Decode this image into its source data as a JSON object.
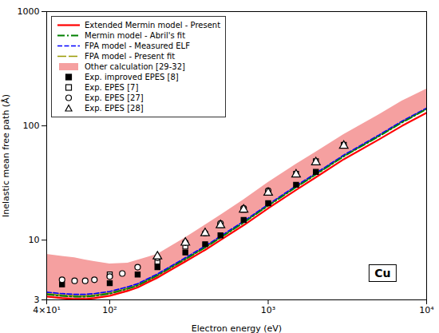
{
  "chart_data": {
    "type": "line",
    "xlabel": "Electron energy (eV)",
    "ylabel": "Inelastic mean free path (Å)",
    "log": true,
    "grid": false,
    "legend": "top-left",
    "xlim": [
      40,
      10000
    ],
    "ylim": [
      3,
      1000
    ],
    "xticks": [
      {
        "value": 40,
        "label": "4×10¹"
      },
      {
        "value": 100,
        "label": "10²"
      },
      {
        "value": 1000,
        "label": "10³"
      },
      {
        "value": 10000,
        "label": "10⁴"
      }
    ],
    "yticks": [
      3,
      10,
      100,
      1000
    ],
    "annotations": [
      "Cu"
    ],
    "series": [
      {
        "name": "Extended Mermin model - Present",
        "type": "line",
        "color": "#ff0000",
        "line_style": "solid",
        "x": [
          40,
          50,
          60,
          70,
          80,
          100,
          130,
          150,
          200,
          300,
          400,
          500,
          700,
          1000,
          1500,
          2000,
          3000,
          5000,
          7000,
          10000
        ],
        "values": [
          3.2,
          3.1,
          3.05,
          3.05,
          3.1,
          3.25,
          3.6,
          3.85,
          4.7,
          6.5,
          8.2,
          10.0,
          13.5,
          19.0,
          27.5,
          35.5,
          51.0,
          76.0,
          100.0,
          130.0
        ]
      },
      {
        "name": "Mermin model - Abril's fit",
        "type": "line",
        "color": "#008000",
        "line_style": "dashdot",
        "x": [
          40,
          50,
          60,
          70,
          80,
          100,
          130,
          150,
          200,
          300,
          400,
          500,
          700,
          1000,
          1500,
          2000,
          3000,
          5000,
          7000,
          10000
        ],
        "values": [
          3.35,
          3.25,
          3.2,
          3.2,
          3.25,
          3.4,
          3.75,
          4.0,
          4.9,
          6.8,
          8.6,
          10.5,
          14.2,
          20.0,
          29.0,
          37.5,
          54.0,
          81.0,
          107.0,
          140.0
        ]
      },
      {
        "name": "FPA model - Measured ELF",
        "type": "line",
        "color": "#0000ff",
        "line_style": "dashed",
        "x": [
          40,
          50,
          60,
          70,
          80,
          100,
          130,
          150,
          200,
          300,
          400,
          500,
          700,
          1000,
          1500,
          2000,
          3000,
          5000,
          7000,
          10000
        ],
        "values": [
          3.5,
          3.4,
          3.35,
          3.35,
          3.4,
          3.55,
          3.9,
          4.15,
          5.05,
          7.0,
          8.85,
          10.8,
          14.6,
          20.5,
          29.8,
          38.5,
          55.5,
          83.0,
          110.0,
          143.0
        ]
      },
      {
        "name": "FPA model - Present fit",
        "type": "line",
        "color": "#999900",
        "line_style": "longdashed",
        "x": [
          40,
          50,
          60,
          70,
          80,
          100,
          130,
          150,
          200,
          300,
          400,
          500,
          700,
          1000,
          1500,
          2000,
          3000,
          5000,
          7000,
          10000
        ],
        "values": [
          3.4,
          3.3,
          3.25,
          3.25,
          3.3,
          3.45,
          3.8,
          4.05,
          4.95,
          6.85,
          8.65,
          10.55,
          14.3,
          20.1,
          29.2,
          37.7,
          54.5,
          81.5,
          108.0,
          141.0
        ]
      },
      {
        "name": "Other calculation [29-32]",
        "type": "area",
        "color": "#f5a0a0",
        "x": [
          40,
          50,
          60,
          70,
          80,
          100,
          130,
          200,
          300,
          500,
          700,
          1000,
          1500,
          2000,
          3000,
          5000,
          7000,
          10000
        ],
        "lower": [
          3.2,
          3.1,
          3.05,
          3.05,
          3.1,
          3.2,
          3.5,
          4.5,
          6.5,
          10.5,
          14.2,
          20.0,
          29.0,
          37.5,
          54.0,
          81.0,
          107.0,
          140.0
        ],
        "upper": [
          7.5,
          7.2,
          7.0,
          6.7,
          6.5,
          6.2,
          6.3,
          7.5,
          10.5,
          16.5,
          22.5,
          32.0,
          46.0,
          59.0,
          84.0,
          125.0,
          165.0,
          210.0
        ]
      },
      {
        "name": "Exp. improved EPES [8]",
        "type": "scatter",
        "color": "#000000",
        "marker": "filled-square",
        "x": [
          50,
          100,
          150,
          200,
          300,
          400,
          500,
          700,
          1000,
          1500,
          2000
        ],
        "values": [
          4.1,
          4.2,
          5.0,
          5.8,
          7.8,
          9.2,
          11.0,
          15.0,
          21.0,
          30.5,
          39.5
        ]
      },
      {
        "name": "Exp. EPES [7]",
        "type": "scatter",
        "color": "#000000",
        "marker": "open-square",
        "x": [
          100,
          200,
          300,
          500,
          700,
          1000,
          1500,
          2000,
          3000
        ],
        "values": [
          5.0,
          6.5,
          8.8,
          13.5,
          18.5,
          26.0,
          38.0,
          49.0,
          68.0
        ]
      },
      {
        "name": "Exp. EPES [27]",
        "type": "scatter",
        "color": "#000000",
        "marker": "open-circle",
        "x": [
          50,
          60,
          70,
          80,
          100,
          120,
          150,
          200,
          300,
          400,
          500,
          700,
          1000
        ],
        "values": [
          4.5,
          4.4,
          4.4,
          4.5,
          4.8,
          5.1,
          5.8,
          7.0,
          9.5,
          11.5,
          14.0,
          19.0,
          27.0
        ]
      },
      {
        "name": "Exp. EPES [28]",
        "type": "scatter",
        "color": "#000000",
        "marker": "open-triangle",
        "x": [
          200,
          300,
          400,
          500,
          700,
          1000,
          1500,
          2000,
          3000
        ],
        "values": [
          7.2,
          9.5,
          11.5,
          13.5,
          18.5,
          26.0,
          37.5,
          48.0,
          67.0
        ]
      }
    ]
  }
}
